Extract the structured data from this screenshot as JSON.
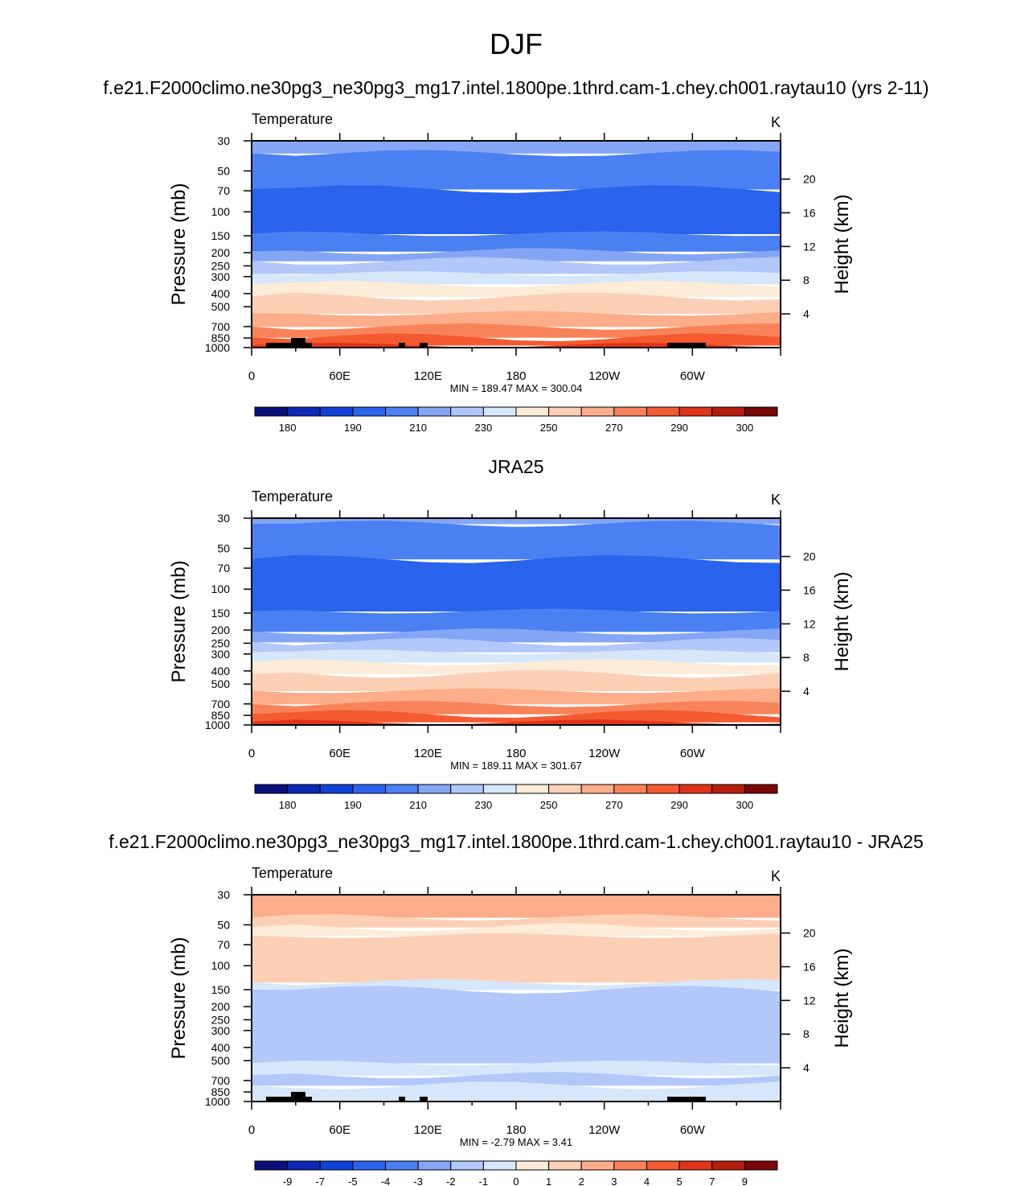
{
  "figure": {
    "title": "DJF"
  },
  "chart_data": [
    {
      "type": "heatmap",
      "title": "f.e21.F2000climo.ne30pg3_ne30pg3_mg17.intel.1800pe.1thrd.cam-1.chey.ch001.raytau10 (yrs 2-11)",
      "left_label": "Temperature",
      "units": "K",
      "ylabel": "Pressure (mb)",
      "ylabel_right": "Height (km)",
      "x_ticks": [
        "0",
        "60E",
        "120E",
        "180",
        "120W",
        "60W"
      ],
      "y_ticks": [
        "30",
        "50",
        "70",
        "100",
        "150",
        "200",
        "250",
        "300",
        "400",
        "500",
        "700",
        "850",
        "1000"
      ],
      "y_ticks_right": [
        "20",
        "16",
        "12",
        "8",
        "4"
      ],
      "stats": "MIN = 189.47  MAX = 300.04",
      "min": 189.47,
      "max": 300.04,
      "colorbar_labels": [
        "180",
        "190",
        "210",
        "230",
        "250",
        "270",
        "290",
        "300"
      ],
      "colorbar_colors": [
        "#08107a",
        "#0c2ab4",
        "#1042d8",
        "#2a63ee",
        "#4a80f2",
        "#84a6f5",
        "#b2c8fa",
        "#d6e7fb",
        "#fdecd8",
        "#fdd0b6",
        "#fcad8a",
        "#f8835a",
        "#f55a30",
        "#e03418",
        "#b61e0c",
        "#7a0806"
      ],
      "y_extent_mb": [
        1000,
        30
      ],
      "bands": [
        {
          "p": 30,
          "color": "#84a6f5"
        },
        {
          "p": 37,
          "color": "#4a80f2"
        },
        {
          "p": 68,
          "color": "#2a63ee"
        },
        {
          "p": 145,
          "color": "#4a80f2"
        },
        {
          "p": 195,
          "color": "#84a6f5"
        },
        {
          "p": 230,
          "color": "#b2c8fa"
        },
        {
          "p": 285,
          "color": "#d6e7fb"
        },
        {
          "p": 340,
          "color": "#fdecd8"
        },
        {
          "p": 420,
          "color": "#fdd0b6"
        },
        {
          "p": 560,
          "color": "#fcad8a"
        },
        {
          "p": 700,
          "color": "#f8835a"
        },
        {
          "p": 840,
          "color": "#f55a30"
        },
        {
          "p": 960,
          "color": "#e03418"
        }
      ]
    },
    {
      "type": "heatmap",
      "title": "JRA25",
      "left_label": "Temperature",
      "units": "K",
      "ylabel": "Pressure (mb)",
      "ylabel_right": "Height (km)",
      "x_ticks": [
        "0",
        "60E",
        "120E",
        "180",
        "120W",
        "60W"
      ],
      "y_ticks": [
        "30",
        "50",
        "70",
        "100",
        "150",
        "200",
        "250",
        "300",
        "400",
        "500",
        "700",
        "850",
        "1000"
      ],
      "y_ticks_right": [
        "20",
        "16",
        "12",
        "8",
        "4"
      ],
      "stats": "MIN = 189.11  MAX = 301.67",
      "min": 189.11,
      "max": 301.67,
      "colorbar_labels": [
        "180",
        "190",
        "210",
        "230",
        "250",
        "270",
        "290",
        "300"
      ],
      "colorbar_colors": [
        "#08107a",
        "#0c2ab4",
        "#1042d8",
        "#2a63ee",
        "#4a80f2",
        "#84a6f5",
        "#b2c8fa",
        "#d6e7fb",
        "#fdecd8",
        "#fdd0b6",
        "#fcad8a",
        "#f8835a",
        "#f55a30",
        "#e03418",
        "#b61e0c",
        "#7a0806"
      ],
      "y_extent_mb": [
        1000,
        30
      ],
      "bands": [
        {
          "p": 30,
          "color": "#84a6f5"
        },
        {
          "p": 33,
          "color": "#4a80f2"
        },
        {
          "p": 60,
          "color": "#2a63ee"
        },
        {
          "p": 145,
          "color": "#4a80f2"
        },
        {
          "p": 205,
          "color": "#84a6f5"
        },
        {
          "p": 245,
          "color": "#b2c8fa"
        },
        {
          "p": 290,
          "color": "#d6e7fb"
        },
        {
          "p": 345,
          "color": "#fdecd8"
        },
        {
          "p": 420,
          "color": "#fdd0b6"
        },
        {
          "p": 560,
          "color": "#fcad8a"
        },
        {
          "p": 700,
          "color": "#f8835a"
        },
        {
          "p": 830,
          "color": "#f55a30"
        },
        {
          "p": 950,
          "color": "#e03418"
        }
      ]
    },
    {
      "type": "heatmap",
      "title": "f.e21.F2000climo.ne30pg3_ne30pg3_mg17.intel.1800pe.1thrd.cam-1.chey.ch001.raytau10 - JRA25",
      "left_label": "Temperature",
      "units": "K",
      "ylabel": "Pressure (mb)",
      "ylabel_right": "Height (km)",
      "x_ticks": [
        "0",
        "60E",
        "120E",
        "180",
        "120W",
        "60W"
      ],
      "y_ticks": [
        "30",
        "50",
        "70",
        "100",
        "150",
        "200",
        "250",
        "300",
        "400",
        "500",
        "700",
        "850",
        "1000"
      ],
      "y_ticks_right": [
        "20",
        "16",
        "12",
        "8",
        "4"
      ],
      "stats": "MIN =  -2.79  MAX =   3.41",
      "min": -2.79,
      "max": 3.41,
      "colorbar_labels": [
        "-9",
        "-7",
        "-5",
        "-4",
        "-3",
        "-2",
        "-1",
        "0",
        "1",
        "2",
        "3",
        "4",
        "5",
        "7",
        "9"
      ],
      "colorbar_colors": [
        "#08107a",
        "#0c2ab4",
        "#1042d8",
        "#2a63ee",
        "#4a80f2",
        "#84a6f5",
        "#b2c8fa",
        "#d6e7fb",
        "#fdecd8",
        "#fdd0b6",
        "#fcad8a",
        "#f8835a",
        "#f55a30",
        "#e03418",
        "#b61e0c",
        "#7a0806"
      ],
      "y_extent_mb": [
        1000,
        30
      ],
      "bands": [
        {
          "p": 30,
          "color": "#fcad8a"
        },
        {
          "p": 44,
          "color": "#fdd0b6"
        },
        {
          "p": 52,
          "color": "#fdecd8"
        },
        {
          "p": 60,
          "color": "#fdd0b6"
        },
        {
          "p": 132,
          "color": "#d6e7fb"
        },
        {
          "p": 150,
          "color": "#b2c8fa"
        },
        {
          "p": 520,
          "color": "#d6e7fb"
        },
        {
          "p": 640,
          "color": "#b2c8fa"
        },
        {
          "p": 760,
          "color": "#d6e7fb"
        }
      ]
    }
  ]
}
